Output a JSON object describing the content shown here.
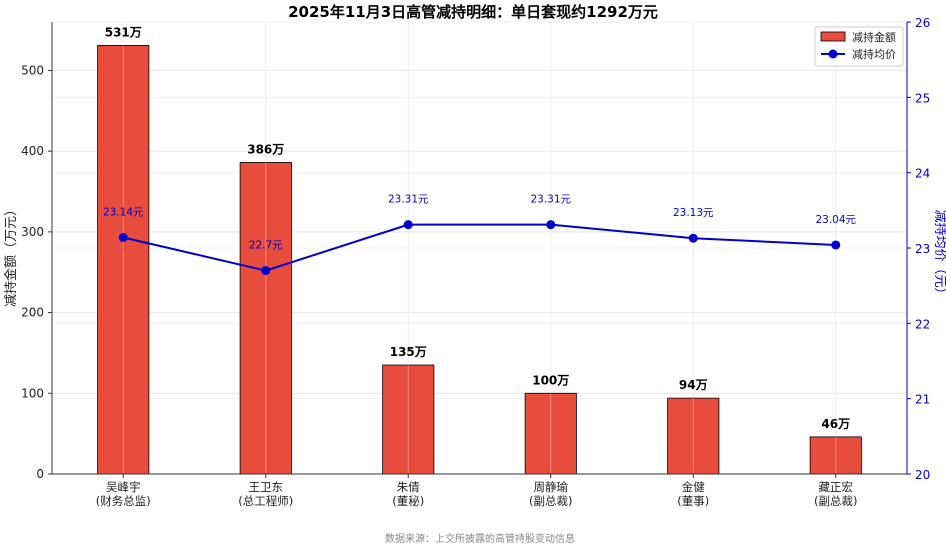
{
  "chart_data": {
    "type": "bar",
    "title": "2025年11月3日高管减持明细：单日套现约1292万元",
    "categories": [
      [
        "吴峰宇",
        "(财务总监)"
      ],
      [
        "王卫东",
        "(总工程师)"
      ],
      [
        "朱倩",
        "(董秘)"
      ],
      [
        "周静瑜",
        "(副总裁)"
      ],
      [
        "金健",
        "(董事)"
      ],
      [
        "藏正宏",
        "(副总裁)"
      ]
    ],
    "ylabel": "减持金额（万元）",
    "y2label": "减持均价（元）",
    "ylim": [
      0,
      560
    ],
    "y2lim": [
      20,
      26
    ],
    "yticks": [
      0,
      100,
      200,
      300,
      400,
      500
    ],
    "y2ticks": [
      20,
      21,
      22,
      23,
      24,
      25,
      26
    ],
    "grid": true,
    "legend_position": "top-right",
    "series": [
      {
        "name": "减持金额",
        "type": "bar",
        "color": "#e74c3c",
        "values": [
          531,
          386,
          135,
          100,
          94,
          46
        ],
        "labels": [
          "531万",
          "386万",
          "135万",
          "100万",
          "94万",
          "46万"
        ]
      },
      {
        "name": "减持均价",
        "type": "line",
        "axis": "right",
        "color": "#0000cc",
        "values": [
          23.14,
          22.7,
          23.31,
          23.31,
          23.13,
          23.04
        ],
        "labels": [
          "23.14元",
          "22.7元",
          "23.31元",
          "23.31元",
          "23.13元",
          "23.04元"
        ]
      }
    ],
    "source": "数据来源：上交所披露的高管持股变动信息"
  }
}
